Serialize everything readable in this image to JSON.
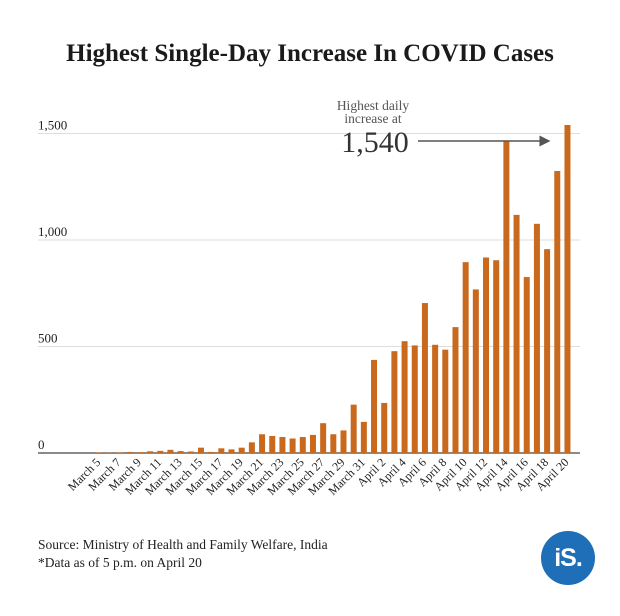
{
  "title": "Highest Single-Day Increase In COVID Cases",
  "source": "Source: Ministry of Health and Family Welfare, India",
  "note": "*Data as of 5 p.m. on April 20",
  "logo_text": "iS.",
  "colors": {
    "bar": "#c8691e",
    "grid": "#dddddd",
    "axis": "#444444",
    "text": "#222222",
    "logo_bg": "#1f6fb8"
  },
  "chart_data": {
    "type": "bar",
    "title": "Highest Single-Day Increase In COVID Cases",
    "xlabel": "",
    "ylabel": "",
    "ylim": [
      0,
      1600
    ],
    "yticks": [
      0,
      500,
      1000,
      1500
    ],
    "ytick_labels": [
      "0",
      "500",
      "1,000",
      "1,500"
    ],
    "grid": true,
    "legend": "none",
    "categories": [
      "March 4",
      "March 5",
      "March 6",
      "March 7",
      "March 8",
      "March 9",
      "March 10",
      "March 11",
      "March 12",
      "March 13",
      "March 14",
      "March 15",
      "March 16",
      "March 17",
      "March 18",
      "March 19",
      "March 20",
      "March 21",
      "March 22",
      "March 23",
      "March 24",
      "March 25",
      "March 26",
      "March 27",
      "March 28",
      "March 29",
      "March 30",
      "March 31",
      "April 1",
      "April 2",
      "April 3",
      "April 4",
      "April 5",
      "April 6",
      "April 7",
      "April 8",
      "April 9",
      "April 10",
      "April 11",
      "April 12",
      "April 13",
      "April 14",
      "April 15",
      "April 16",
      "April 17",
      "April 18",
      "April 19",
      "April 20"
    ],
    "tick_labels_shown": [
      "March 5",
      "March 7",
      "March 9",
      "March 11",
      "March 13",
      "March 15",
      "March 17",
      "March 19",
      "March 21",
      "March 23",
      "March 25",
      "March 27",
      "March 29",
      "March 31",
      "April 2",
      "April 4",
      "April 6",
      "April 8",
      "April 10",
      "April 12",
      "April 14",
      "April 16",
      "April 18",
      "April 20"
    ],
    "values": [
      0,
      3,
      1,
      3,
      5,
      4,
      8,
      10,
      15,
      9,
      7,
      25,
      5,
      22,
      17,
      25,
      50,
      88,
      80,
      75,
      68,
      75,
      85,
      140,
      88,
      106,
      227,
      146,
      437,
      235,
      478,
      525,
      505,
      704,
      508,
      485,
      591,
      896,
      768,
      918,
      905,
      1463,
      1118,
      826,
      1076,
      957,
      1324,
      1540
    ],
    "annotation": {
      "label": "Highest daily\nincrease at",
      "value_text": "1,540",
      "target_category": "April 20"
    }
  }
}
